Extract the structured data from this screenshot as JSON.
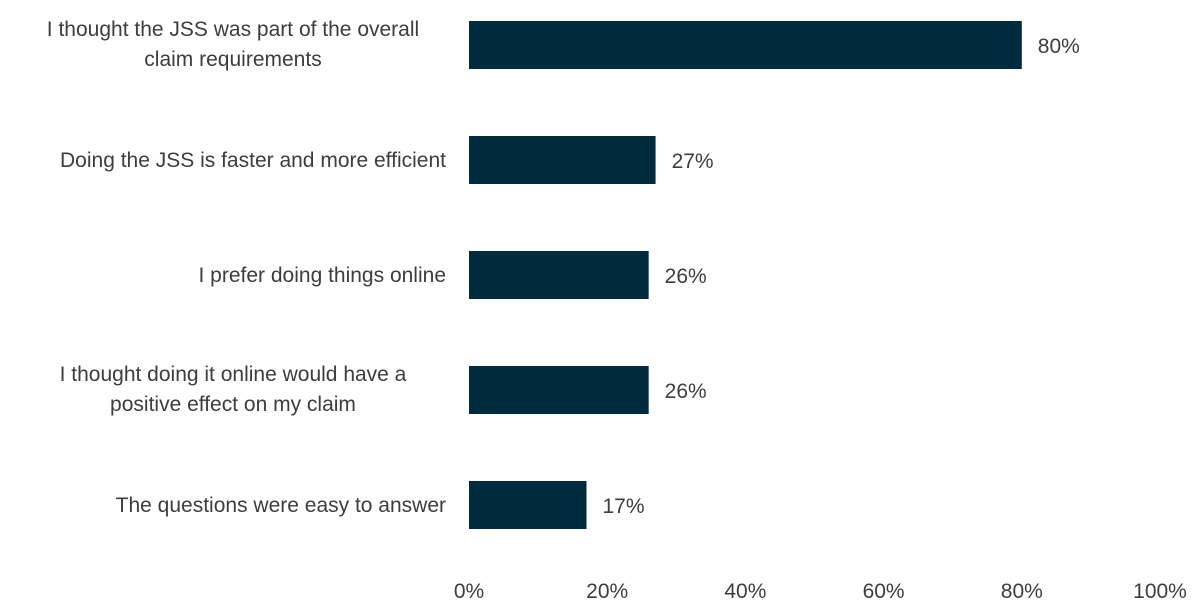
{
  "chart_data": {
    "type": "bar",
    "orientation": "horizontal",
    "categories": [
      [
        "I thought the JSS was part of the overall",
        "claim requirements"
      ],
      [
        "Doing the JSS is faster and more efficient"
      ],
      [
        "I prefer doing things online"
      ],
      [
        "I thought doing it online would have a",
        "positive effect on my claim"
      ],
      [
        "The questions were easy to answer"
      ]
    ],
    "values": [
      80,
      27,
      26,
      26,
      17
    ],
    "value_labels": [
      "80%",
      "27%",
      "26%",
      "26%",
      "17%"
    ],
    "xlim": [
      0,
      100
    ],
    "x_ticks": [
      0,
      20,
      40,
      60,
      80,
      100
    ],
    "x_tick_labels": [
      "0%",
      "20%",
      "40%",
      "60%",
      "80%",
      "100%"
    ],
    "grid": false,
    "legend": "none",
    "bar_color": "#002A3E",
    "text_color": "#3D3D3D"
  }
}
